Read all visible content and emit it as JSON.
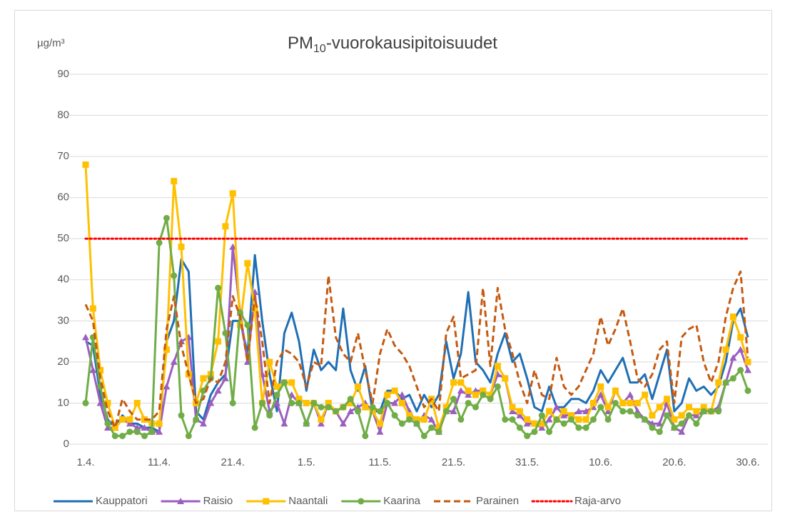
{
  "chart_data": {
    "type": "line",
    "title": [
      "PM",
      "10",
      "-vuorokausipitoisuudet"
    ],
    "y_label": "µg/m³",
    "categories": [
      "1.4.",
      null,
      null,
      null,
      null,
      null,
      null,
      null,
      null,
      null,
      "11.4.",
      null,
      null,
      null,
      null,
      null,
      null,
      null,
      null,
      null,
      "21.4.",
      null,
      null,
      null,
      null,
      null,
      null,
      null,
      null,
      null,
      "1.5.",
      null,
      null,
      null,
      null,
      null,
      null,
      null,
      null,
      null,
      "11.5.",
      null,
      null,
      null,
      null,
      null,
      null,
      null,
      null,
      null,
      "21.5.",
      null,
      null,
      null,
      null,
      null,
      null,
      null,
      null,
      null,
      "31.5.",
      null,
      null,
      null,
      null,
      null,
      null,
      null,
      null,
      null,
      "10.6.",
      null,
      null,
      null,
      null,
      null,
      null,
      null,
      null,
      null,
      "20.6.",
      null,
      null,
      null,
      null,
      null,
      null,
      null,
      null,
      null,
      "30.6."
    ],
    "ylim": [
      0,
      90
    ],
    "yticks": [
      0,
      10,
      20,
      30,
      40,
      50,
      60,
      70,
      80,
      90
    ],
    "grid": true,
    "legend": "bottom",
    "series": [
      {
        "name": "Kauppatori",
        "color": "#1f6fb5",
        "marker": "none",
        "dash": "solid",
        "values": [
          25,
          24,
          12,
          6,
          4,
          7,
          5,
          5,
          4,
          4,
          3,
          25,
          30,
          45,
          42,
          8,
          6,
          12,
          15,
          17,
          30,
          30,
          22,
          46,
          30,
          17,
          8,
          27,
          32,
          25,
          13,
          23,
          18,
          20,
          18,
          33,
          18,
          13,
          19,
          8,
          8,
          13,
          13,
          11,
          12,
          8,
          12,
          9,
          12,
          25,
          16,
          22,
          37,
          20,
          18,
          15,
          22,
          27,
          20,
          22,
          16,
          9,
          8,
          14,
          9,
          9,
          11,
          11,
          10,
          13,
          18,
          15,
          18,
          21,
          15,
          15,
          17,
          11,
          17,
          23,
          8,
          10,
          16,
          13,
          14,
          12,
          14,
          20,
          30,
          33,
          26
        ]
      },
      {
        "name": "Raisio",
        "color": "#9b5fc0",
        "marker": "triangle",
        "dash": "solid",
        "values": [
          26,
          18,
          10,
          4,
          4,
          6,
          5,
          4,
          4,
          3,
          3,
          14,
          20,
          25,
          26,
          6,
          5,
          10,
          13,
          16,
          48,
          32,
          20,
          37,
          17,
          8,
          10,
          5,
          12,
          10,
          5,
          10,
          5,
          10,
          8,
          5,
          8,
          9,
          10,
          8,
          3,
          10,
          10,
          12,
          8,
          5,
          7,
          6,
          3,
          8,
          8,
          13,
          12,
          13,
          13,
          12,
          17,
          16,
          8,
          7,
          5,
          5,
          4,
          6,
          9,
          7,
          7,
          8,
          8,
          9,
          12,
          8,
          13,
          10,
          12,
          8,
          6,
          5,
          5,
          10,
          4,
          3,
          7,
          7,
          8,
          8,
          9,
          15,
          21,
          23,
          18
        ]
      },
      {
        "name": "Naantali",
        "color": "#ffc000",
        "marker": "square",
        "dash": "solid",
        "values": [
          68,
          33,
          18,
          10,
          4,
          6,
          6,
          10,
          6,
          5,
          5,
          23,
          64,
          48,
          17,
          10,
          16,
          17,
          25,
          53,
          61,
          29,
          44,
          33,
          10,
          20,
          14,
          15,
          15,
          11,
          10,
          10,
          6,
          10,
          8,
          9,
          10,
          14,
          9,
          8,
          5,
          12,
          13,
          10,
          7,
          6,
          6,
          11,
          4,
          9,
          15,
          15,
          13,
          12,
          13,
          12,
          19,
          16,
          9,
          8,
          6,
          5,
          5,
          8,
          6,
          8,
          7,
          6,
          6,
          10,
          14,
          9,
          13,
          10,
          10,
          10,
          12,
          7,
          9,
          11,
          6,
          7,
          9,
          8,
          9,
          8,
          15,
          23,
          31,
          26,
          20
        ]
      },
      {
        "name": "Kaarina",
        "color": "#70ad47",
        "marker": "circle",
        "dash": "solid",
        "values": [
          10,
          26,
          14,
          5,
          2,
          2,
          3,
          3,
          2,
          3,
          49,
          55,
          41,
          7,
          2,
          6,
          13,
          16,
          38,
          27,
          10,
          32,
          29,
          4,
          10,
          7,
          12,
          15,
          10,
          10,
          5,
          10,
          9,
          9,
          8,
          9,
          11,
          8,
          2,
          9,
          8,
          10,
          7,
          5,
          6,
          5,
          2,
          4,
          3,
          8,
          11,
          6,
          10,
          9,
          12,
          11,
          14,
          6,
          6,
          4,
          2,
          3,
          7,
          3,
          6,
          5,
          6,
          4,
          4,
          6,
          9,
          6,
          10,
          8,
          8,
          7,
          6,
          4,
          3,
          7,
          4,
          5,
          7,
          5,
          8,
          8,
          8,
          15,
          16,
          18,
          13
        ]
      },
      {
        "name": "Parainen",
        "color": "#c55a11",
        "marker": "none",
        "dash": "dashed",
        "values": [
          34,
          30,
          16,
          8,
          4,
          11,
          8,
          6,
          6,
          6,
          8,
          28,
          36,
          24,
          17,
          10,
          11,
          16,
          15,
          20,
          36,
          31,
          20,
          36,
          25,
          10,
          20,
          23,
          22,
          20,
          14,
          20,
          19,
          41,
          26,
          22,
          20,
          27,
          18,
          10,
          22,
          28,
          24,
          22,
          19,
          14,
          9,
          11,
          8,
          27,
          31,
          16,
          17,
          18,
          38,
          19,
          38,
          28,
          22,
          15,
          10,
          18,
          12,
          11,
          21,
          14,
          12,
          14,
          18,
          22,
          31,
          24,
          28,
          33,
          25,
          16,
          14,
          17,
          23,
          25,
          10,
          26,
          28,
          29,
          20,
          15,
          20,
          31,
          38,
          42,
          21
        ]
      },
      {
        "name": "Raja-arvo",
        "color": "#ff0000",
        "marker": "none",
        "dash": "dotted",
        "values": [
          50,
          50,
          50,
          50,
          50,
          50,
          50,
          50,
          50,
          50,
          50,
          50,
          50,
          50,
          50,
          50,
          50,
          50,
          50,
          50,
          50,
          50,
          50,
          50,
          50,
          50,
          50,
          50,
          50,
          50,
          50,
          50,
          50,
          50,
          50,
          50,
          50,
          50,
          50,
          50,
          50,
          50,
          50,
          50,
          50,
          50,
          50,
          50,
          50,
          50,
          50,
          50,
          50,
          50,
          50,
          50,
          50,
          50,
          50,
          50,
          50,
          50,
          50,
          50,
          50,
          50,
          50,
          50,
          50,
          50,
          50,
          50,
          50,
          50,
          50,
          50,
          50,
          50,
          50,
          50,
          50,
          50,
          50,
          50,
          50,
          50,
          50,
          50,
          50,
          50,
          50
        ]
      }
    ]
  }
}
